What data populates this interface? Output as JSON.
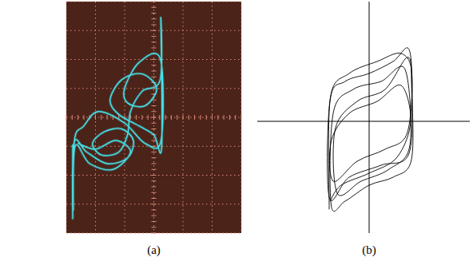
{
  "chart_data": [
    {
      "type": "line",
      "title": "(a)",
      "color": "#44e4ec",
      "grid": true,
      "tick_labels": false,
      "xlim": [
        -3,
        3
      ],
      "ylim": [
        -4,
        4
      ],
      "xticks": [
        -3,
        -2,
        -1,
        0,
        1,
        2,
        3
      ],
      "yticks": [
        -4,
        -3,
        -2,
        -1,
        0,
        1,
        2,
        3,
        4
      ],
      "x": [
        -2.78,
        -2.78,
        -2.74,
        -2.3,
        -1.6,
        -0.9,
        -0.7,
        -1.1,
        -1.7,
        -2.1,
        -1.8,
        -1.2,
        -0.9,
        -0.8,
        -0.4,
        0.22,
        0.24,
        0.27,
        0.0,
        -0.5,
        -1.2,
        -1.5,
        -1.1,
        -0.4,
        0.1,
        -0.3,
        -0.9,
        -1.0,
        -0.5,
        0.23,
        0.25,
        -0.3,
        -1.0,
        -1.9,
        -2.4,
        -2.72,
        -2.76,
        -2.7,
        -2.2,
        -1.4,
        -0.8,
        -1.3,
        -2.0,
        -2.6
      ],
      "values": [
        -0.95,
        -3.5,
        -0.9,
        -1.2,
        -1.6,
        -1.4,
        -0.8,
        -0.4,
        -0.5,
        -0.9,
        -1.3,
        -1.2,
        -0.6,
        0.2,
        0.9,
        1.3,
        3.4,
        -1.0,
        -0.6,
        -0.3,
        0.1,
        0.6,
        1.3,
        1.5,
        1.0,
        0.4,
        0.5,
        1.0,
        1.9,
        2.0,
        -0.8,
        -0.9,
        -0.2,
        0.2,
        -0.3,
        -0.8,
        -3.2,
        -1.0,
        -1.6,
        -1.8,
        -1.2,
        -0.8,
        -1.1,
        -0.9
      ]
    },
    {
      "type": "line",
      "title": "(b)",
      "color": "#000000",
      "grid": false,
      "tick_labels": false,
      "xlim": [
        -2.8,
        2.52
      ],
      "ylim": [
        -2.8,
        3.0
      ],
      "x": [
        -1.0,
        -0.98,
        -0.6,
        0.0,
        0.6,
        1.0,
        1.08,
        1.05,
        0.6,
        0.0,
        -0.6,
        -0.95,
        -0.9,
        -0.4,
        0.3,
        0.9,
        1.02,
        0.5,
        -0.2,
        -0.8,
        -0.85,
        -0.3,
        0.4,
        0.95,
        1.06,
        1.0,
        0.3,
        -0.5,
        -1.0,
        -0.97,
        -0.5,
        0.2,
        0.8,
        1.07,
        0.95,
        0.4,
        -0.3,
        -0.9,
        -0.95,
        -0.5,
        0.2,
        0.8,
        1.04,
        0.7,
        0.0,
        -0.7,
        -0.98
      ],
      "values": [
        -2.2,
        0.5,
        1.0,
        1.2,
        1.5,
        1.8,
        0.5,
        -1.0,
        -1.4,
        -1.6,
        -2.0,
        -2.1,
        0.2,
        0.8,
        1.0,
        1.3,
        -0.6,
        -1.2,
        -1.5,
        -1.8,
        -0.2,
        0.5,
        0.8,
        1.6,
        1.0,
        -0.8,
        -1.1,
        -1.4,
        -1.9,
        0.6,
        1.2,
        1.5,
        1.7,
        1.2,
        -0.3,
        -0.7,
        -1.0,
        -1.5,
        -0.5,
        0.2,
        0.5,
        0.9,
        0.0,
        -0.9,
        -1.3,
        -1.6,
        -2.0
      ]
    }
  ]
}
